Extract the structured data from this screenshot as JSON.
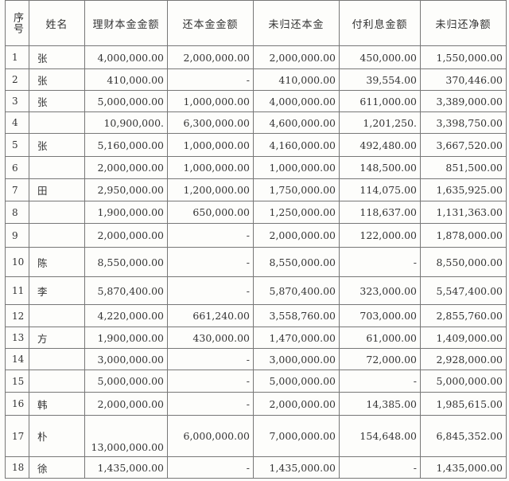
{
  "table": {
    "header": [
      "序号",
      "姓名",
      "理财本金金额",
      "还本金金额",
      "未归还本金",
      "付利息金额",
      "未归还净额"
    ],
    "rows": [
      [
        "1",
        "张",
        "4,000,000.00",
        "2,000,000.00",
        "2,000,000.00",
        "450,000.00",
        "1,550,000.00"
      ],
      [
        "2",
        "张",
        "410,000.00",
        "-",
        "410,000.00",
        "39,554.00",
        "370,446.00"
      ],
      [
        "3",
        "张",
        "5,000,000.00",
        "1,000,000.00",
        "4,000,000.00",
        "611,000.00",
        "3,389,000.00"
      ],
      [
        "4",
        null,
        "10,900,000.",
        "6,300,000.00",
        "4,600,000.00",
        "1,201,250.",
        "3,398,750.00"
      ],
      [
        "5",
        "张",
        "5,160,000.00",
        "1,000,000.00",
        "4,160,000.00",
        "492,480.00",
        "3,667,520.00"
      ],
      [
        "6",
        null,
        "2,000,000.00",
        "1,000,000.00",
        "1,000,000.00",
        "148,500.00",
        "851,500.00"
      ],
      [
        "7",
        "田",
        "2,950,000.00",
        "1,200,000.00",
        "1,750,000.00",
        "114,075.00",
        "1,635,925.00"
      ],
      [
        "8",
        null,
        "1,900,000.00",
        "650,000.00",
        "1,250,000.00",
        "118,637.00",
        "1,131,363.00"
      ],
      [
        "9",
        null,
        "2,000,000.00",
        "-",
        "2,000,000.00",
        "122,000.00",
        "1,878,000.00"
      ],
      [
        "10",
        "陈",
        "8,550,000.00",
        "-",
        "8,550,000.00",
        "-",
        "8,550,000.00"
      ],
      [
        "11",
        "李",
        "5,870,400.00",
        "-",
        "5,870,400.00",
        "323,000.00",
        "5,547,400.00"
      ],
      [
        "12",
        null,
        "4,220,000.00",
        "661,240.00",
        "3,558,760.00",
        "703,000.00",
        "2,855,760.00"
      ],
      [
        "13",
        "方",
        "1,900,000.00",
        "430,000.00",
        "1,470,000.00",
        "61,000.00",
        "1,409,000.00"
      ],
      [
        "14",
        null,
        "3,000,000.00",
        "-",
        "3,000,000.00",
        "72,000.00",
        "2,928,000.00"
      ],
      [
        "15",
        null,
        "5,000,000.00",
        "-",
        "5,000,000.00",
        "-",
        "5,000,000.00"
      ],
      [
        "16",
        "韩",
        "2,000,000.00",
        "-",
        "2,000,000.00",
        "14,385.00",
        "1,985,615.00"
      ],
      [
        "17",
        "朴",
        "13,000,000.00",
        "6,000,000.00",
        "7,000,000.00",
        "154,648.00",
        "6,845,352.00"
      ],
      [
        "18",
        "徐",
        "1,435,000.00",
        "-",
        "1,435,000.00",
        "-",
        "1,435,000.00"
      ]
    ]
  }
}
